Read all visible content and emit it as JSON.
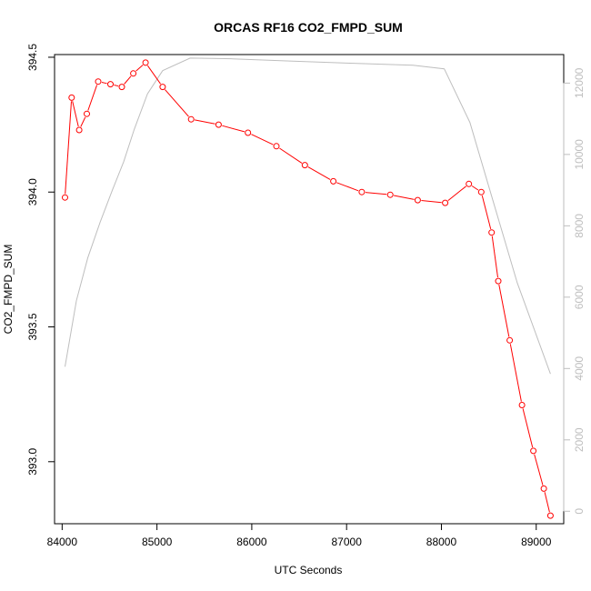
{
  "chart_data": {
    "type": "line",
    "title": "ORCAS RF16 CO2_FMPD_SUM",
    "xlabel": "UTC Seconds",
    "ylabel": "CO2_FMPD_SUM",
    "ylabel_right": "",
    "xlim": [
      83920,
      89290
    ],
    "ylim": [
      392.77,
      394.51
    ],
    "ylim_right": [
      -350,
      12800
    ],
    "x_ticks": [
      84000,
      85000,
      86000,
      87000,
      88000,
      89000
    ],
    "y_ticks": [
      393.0,
      393.5,
      394.0,
      394.5
    ],
    "y_tick_labels": [
      "393.0",
      "393.5",
      "394.0",
      "394.5"
    ],
    "y_right_ticks": [
      0,
      2000,
      4000,
      6000,
      8000,
      10000,
      12000
    ],
    "colors": {
      "primary": "#ff0000",
      "secondary": "#bebebe",
      "axis": "#000000",
      "axis_right": "#bebebe"
    },
    "grid": false,
    "series": [
      {
        "axis": "left",
        "style": "line-with-circles",
        "x": [
          84030,
          84100,
          84180,
          84260,
          84380,
          84510,
          84630,
          84750,
          84880,
          85060,
          85360,
          85650,
          85960,
          86260,
          86560,
          86860,
          87160,
          87460,
          87750,
          88040,
          88290,
          88420,
          88530,
          88600,
          88720,
          88850,
          88970,
          89080,
          89150
        ],
        "values": [
          393.98,
          394.35,
          394.23,
          394.29,
          394.41,
          394.4,
          394.39,
          394.44,
          394.48,
          394.39,
          394.27,
          394.25,
          394.22,
          394.17,
          394.1,
          394.04,
          394.0,
          393.99,
          393.97,
          393.96,
          394.03,
          394.0,
          393.85,
          393.67,
          393.45,
          393.21,
          393.04,
          392.9,
          392.8
        ]
      },
      {
        "axis": "right",
        "style": "line",
        "x": [
          84030,
          84150,
          84270,
          84400,
          84530,
          84650,
          84760,
          84900,
          85060,
          85350,
          85800,
          86400,
          87000,
          87700,
          88030,
          88300,
          88500,
          88800,
          89150
        ],
        "values": [
          4050,
          5900,
          7100,
          8100,
          9000,
          9800,
          10700,
          11700,
          12350,
          12700,
          12680,
          12620,
          12560,
          12500,
          12400,
          10900,
          9100,
          6400,
          3850
        ]
      }
    ]
  }
}
